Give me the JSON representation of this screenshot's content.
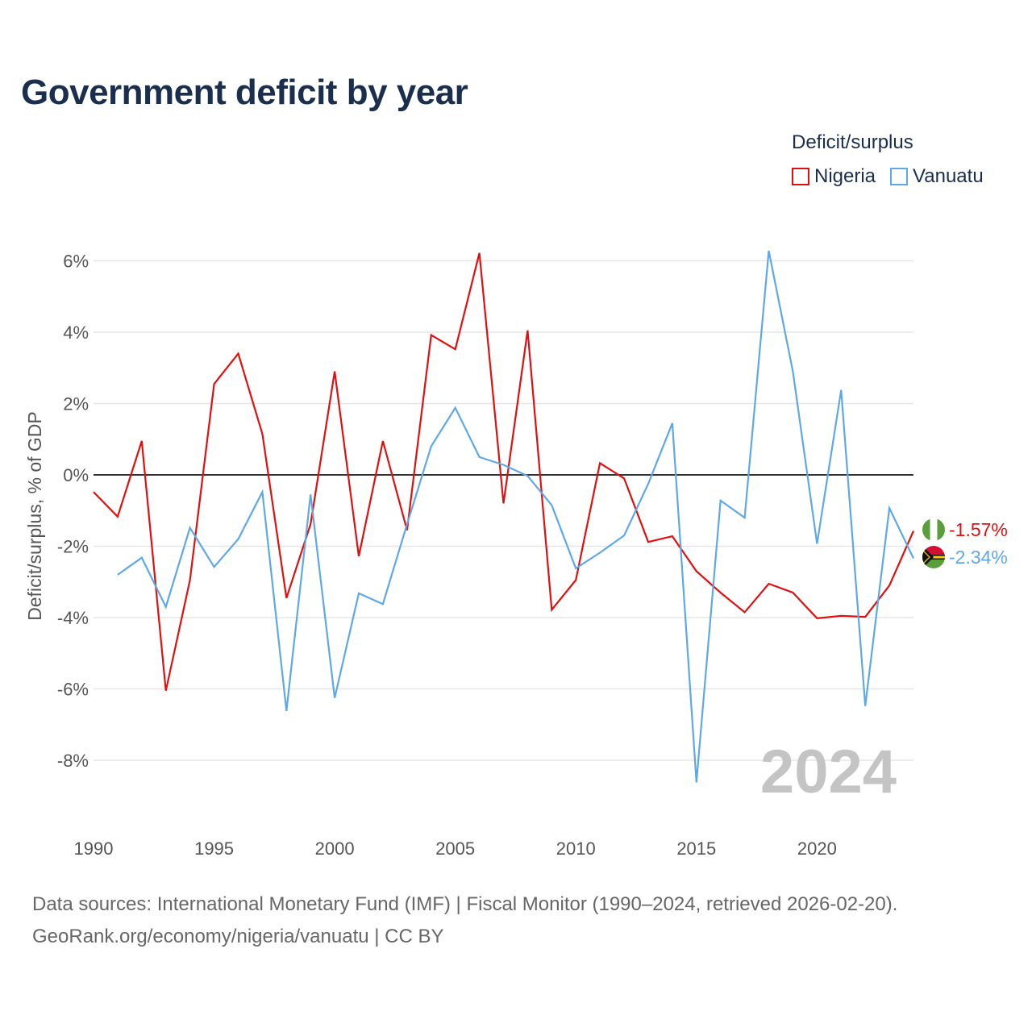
{
  "title": "Government deficit by year",
  "legend": {
    "title": "Deficit/surplus",
    "items": [
      {
        "name": "Nigeria",
        "color": "#e01010"
      },
      {
        "name": "Vanuatu",
        "color": "#5fa8e6"
      }
    ]
  },
  "watermark_year": "2024",
  "end_labels": {
    "nigeria": "-1.57%",
    "vanuatu": "-2.34%"
  },
  "footer": {
    "line1": "Data sources: International Monetary Fund (IMF) | Fiscal Monitor (1990–2024, retrieved 2026-02-20).",
    "line2": "GeoRank.org/economy/nigeria/vanuatu | CC BY"
  },
  "chart_data": {
    "type": "line",
    "title": "Government deficit by year",
    "xlabel": "",
    "ylabel": "Deficit/surplus, % of GDP",
    "xlim": [
      1990,
      2024
    ],
    "ylim": [
      -9.6,
      6.6
    ],
    "yticks": [
      6,
      4,
      2,
      0,
      -2,
      -4,
      -6,
      -8
    ],
    "ytick_labels": [
      "6%",
      "4%",
      "2%",
      "0%",
      "-2%",
      "-4%",
      "-6%",
      "-8%"
    ],
    "xticks": [
      1990,
      1995,
      2000,
      2005,
      2010,
      2015,
      2020
    ],
    "xtick_labels": [
      "1990",
      "1995",
      "2000",
      "2005",
      "2010",
      "2015",
      "2020"
    ],
    "grid": true,
    "series": [
      {
        "name": "Nigeria",
        "color": "#e01010",
        "x": [
          1990,
          1991,
          1992,
          1993,
          1994,
          1995,
          1996,
          1997,
          1998,
          1999,
          2000,
          2001,
          2002,
          2003,
          2004,
          2005,
          2006,
          2007,
          2008,
          2009,
          2010,
          2011,
          2012,
          2013,
          2014,
          2015,
          2016,
          2017,
          2018,
          2019,
          2020,
          2021,
          2022,
          2023,
          2024
        ],
        "values": [
          -0.48,
          -1.17,
          0.95,
          -6.05,
          -2.95,
          2.55,
          3.4,
          1.15,
          -3.45,
          -1.38,
          2.9,
          -2.28,
          0.95,
          -1.55,
          3.92,
          3.52,
          6.22,
          -0.8,
          4.05,
          -3.78,
          -2.95,
          0.33,
          -0.1,
          -1.88,
          -1.72,
          -2.7,
          -3.3,
          -3.85,
          -3.05,
          -3.3,
          -4.02,
          -3.95,
          -3.98,
          -3.1,
          -1.57
        ]
      },
      {
        "name": "Vanuatu",
        "color": "#5fa8e6",
        "x": [
          1991,
          1992,
          1993,
          1994,
          1995,
          1996,
          1997,
          1998,
          1999,
          2000,
          2001,
          2002,
          2003,
          2004,
          2005,
          2006,
          2007,
          2008,
          2009,
          2010,
          2011,
          2012,
          2013,
          2014,
          2015,
          2016,
          2017,
          2018,
          2019,
          2020,
          2021,
          2022,
          2023,
          2024
        ],
        "values": [
          -2.8,
          -2.32,
          -3.7,
          -1.48,
          -2.58,
          -1.8,
          -0.48,
          -6.62,
          -0.55,
          -6.25,
          -3.32,
          -3.62,
          -1.38,
          0.8,
          1.88,
          0.5,
          0.28,
          -0.03,
          -0.85,
          -2.62,
          -2.18,
          -1.7,
          -0.25,
          1.45,
          -8.62,
          -0.72,
          -1.2,
          6.28,
          2.9,
          -1.93,
          2.38,
          -6.48,
          -0.93,
          -2.34
        ]
      }
    ]
  }
}
